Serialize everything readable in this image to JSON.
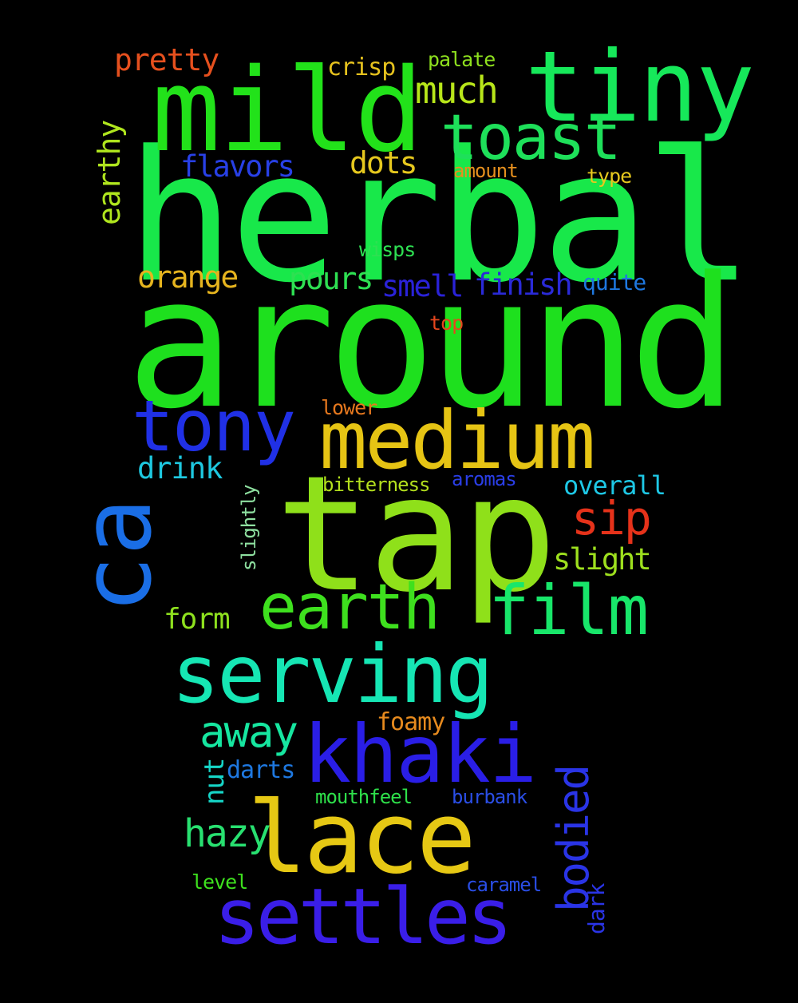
{
  "words": [
    {
      "text": "herbal",
      "color": "#18e84a",
      "vertical": false
    },
    {
      "text": "around",
      "color": "#1ee01e",
      "vertical": false
    },
    {
      "text": "tap",
      "color": "#8fe01a",
      "vertical": false
    },
    {
      "text": "mild",
      "color": "#22e21a",
      "vertical": false
    },
    {
      "text": "tiny",
      "color": "#16e85a",
      "vertical": false
    },
    {
      "text": "medium",
      "color": "#e6c414",
      "vertical": false
    },
    {
      "text": "serving",
      "color": "#16e6b4",
      "vertical": false
    },
    {
      "text": "khaki",
      "color": "#2a1ee6",
      "vertical": false
    },
    {
      "text": "lace",
      "color": "#e6c814",
      "vertical": false
    },
    {
      "text": "settles",
      "color": "#3a1ee8",
      "vertical": false
    },
    {
      "text": "ca",
      "color": "#1a6ee6",
      "vertical": true
    },
    {
      "text": "tony",
      "color": "#2030e6",
      "vertical": false
    },
    {
      "text": "toast",
      "color": "#1ee05a",
      "vertical": false
    },
    {
      "text": "earth",
      "color": "#3ee01e",
      "vertical": false
    },
    {
      "text": "film",
      "color": "#18e66a",
      "vertical": false
    },
    {
      "text": "away",
      "color": "#16e6a0",
      "vertical": false
    },
    {
      "text": "hazy",
      "color": "#28e070",
      "vertical": false
    },
    {
      "text": "bodied",
      "color": "#2a34e6",
      "vertical": true
    },
    {
      "text": "sip",
      "color": "#e6321a",
      "vertical": false
    },
    {
      "text": "much",
      "color": "#b8e61a",
      "vertical": false
    },
    {
      "text": "pretty",
      "color": "#e6501e",
      "vertical": false
    },
    {
      "text": "earthy",
      "color": "#b0e61e",
      "vertical": true
    },
    {
      "text": "flavors",
      "color": "#2840e6",
      "vertical": false
    },
    {
      "text": "dots",
      "color": "#e6c81e",
      "vertical": false
    },
    {
      "text": "orange",
      "color": "#e6b41e",
      "vertical": false
    },
    {
      "text": "pours",
      "color": "#2ee052",
      "vertical": false
    },
    {
      "text": "smell",
      "color": "#2a22d8",
      "vertical": false
    },
    {
      "text": "finish",
      "color": "#2a2ad8",
      "vertical": false
    },
    {
      "text": "drink",
      "color": "#1ec8e0",
      "vertical": false
    },
    {
      "text": "slight",
      "color": "#9ee01e",
      "vertical": false
    },
    {
      "text": "overall",
      "color": "#1ec8e6",
      "vertical": false
    },
    {
      "text": "form",
      "color": "#8ee01e",
      "vertical": false
    },
    {
      "text": "nut",
      "color": "#16d6c8",
      "vertical": true
    },
    {
      "text": "darts",
      "color": "#1e78e0",
      "vertical": false
    },
    {
      "text": "foamy",
      "color": "#e68a1e",
      "vertical": false
    },
    {
      "text": "crisp",
      "color": "#e6c21e",
      "vertical": false
    },
    {
      "text": "palate",
      "color": "#8ee01e",
      "vertical": false
    },
    {
      "text": "amount",
      "color": "#e6901e",
      "vertical": false
    },
    {
      "text": "type",
      "color": "#e6c81e",
      "vertical": false
    },
    {
      "text": "wisps",
      "color": "#2ee052",
      "vertical": false
    },
    {
      "text": "quite",
      "color": "#1e78e0",
      "vertical": false
    },
    {
      "text": "top",
      "color": "#e6461e",
      "vertical": false
    },
    {
      "text": "lower",
      "color": "#e6781e",
      "vertical": false
    },
    {
      "text": "bitterness",
      "color": "#b4e01e",
      "vertical": false
    },
    {
      "text": "aromas",
      "color": "#2a3ee6",
      "vertical": false
    },
    {
      "text": "slightly",
      "color": "#8ee0a0",
      "vertical": true
    },
    {
      "text": "mouthfeel",
      "color": "#2ee04a",
      "vertical": false
    },
    {
      "text": "burbank",
      "color": "#2a4ee6",
      "vertical": false
    },
    {
      "text": "level",
      "color": "#3ee01e",
      "vertical": false
    },
    {
      "text": "caramel",
      "color": "#2a4ee6",
      "vertical": false
    },
    {
      "text": "dark",
      "color": "#2a34e6",
      "vertical": true
    }
  ]
}
